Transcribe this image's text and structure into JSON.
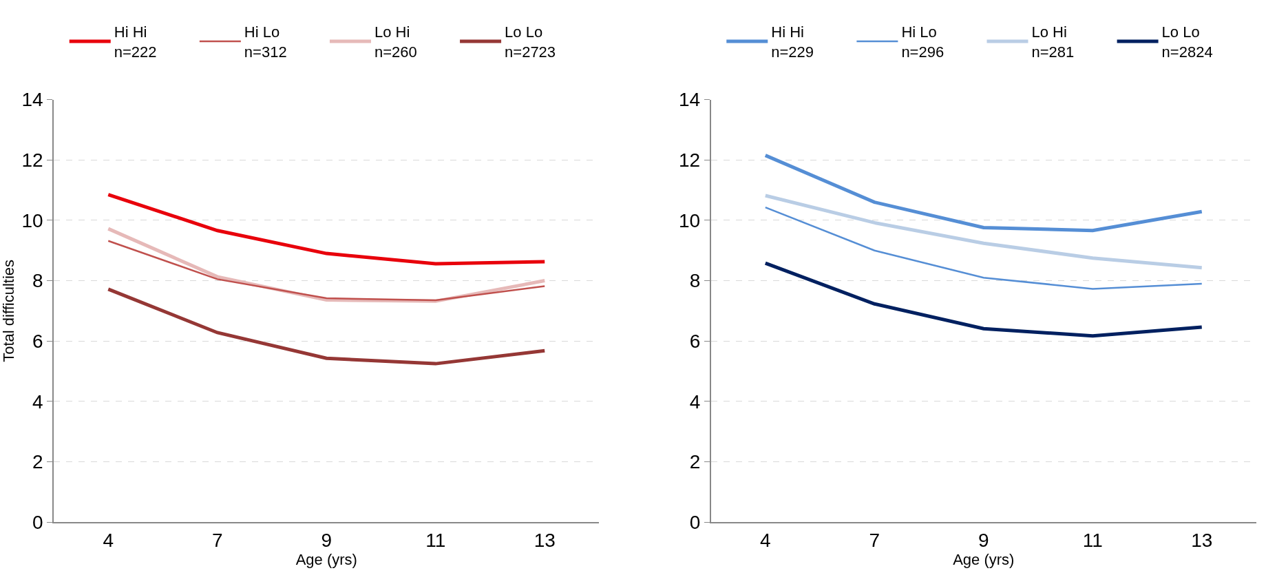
{
  "chart_data": [
    {
      "type": "line",
      "categories": [
        "4",
        "7",
        "9",
        "11",
        "13"
      ],
      "xlabel": "Age (yrs)",
      "ylabel": "Total difficulties",
      "ylim": [
        0,
        14
      ],
      "yticks": [
        0,
        2,
        4,
        6,
        8,
        10,
        12,
        14
      ],
      "grid": "y",
      "legend": "top",
      "marker": "none",
      "line_style": "solid",
      "series": [
        {
          "name": "Hi Hi\nn=222",
          "color": "#e8000b",
          "values": [
            10.85,
            9.66,
            8.9,
            8.56,
            8.63
          ]
        },
        {
          "name": "Hi Lo\nn=312",
          "color": "#c0504d",
          "values": [
            9.32,
            8.05,
            7.42,
            7.35,
            7.82
          ]
        },
        {
          "name": "Lo Hi\nn=260",
          "color": "#e6b9b8",
          "values": [
            9.72,
            8.13,
            7.36,
            7.32,
            8.0
          ]
        },
        {
          "name": "Lo Lo\nn=2723",
          "color": "#953735",
          "values": [
            7.72,
            6.28,
            5.43,
            5.25,
            5.68
          ]
        }
      ]
    },
    {
      "type": "line",
      "categories": [
        "4",
        "7",
        "9",
        "11",
        "13"
      ],
      "xlabel": "Age (yrs)",
      "ylim": [
        0,
        14
      ],
      "yticks": [
        0,
        2,
        4,
        6,
        8,
        10,
        12,
        14
      ],
      "grid": "y",
      "legend": "top",
      "marker": "none",
      "line_style": "solid",
      "series": [
        {
          "name": "Hi Hi\nn=229",
          "color": "#558ed5",
          "values": [
            12.15,
            10.6,
            9.76,
            9.66,
            10.29
          ]
        },
        {
          "name": "Hi Lo\nn=296",
          "color": "#558ed5",
          "values": [
            10.43,
            9.0,
            8.1,
            7.73,
            7.9
          ]
        },
        {
          "name": "Lo Hi\nn=281",
          "color": "#b9cde5",
          "values": [
            10.82,
            9.92,
            9.24,
            8.75,
            8.43
          ]
        },
        {
          "name": "Lo Lo\nn=2824",
          "color": "#002060",
          "values": [
            8.58,
            7.23,
            6.41,
            6.17,
            6.46
          ]
        }
      ]
    }
  ]
}
